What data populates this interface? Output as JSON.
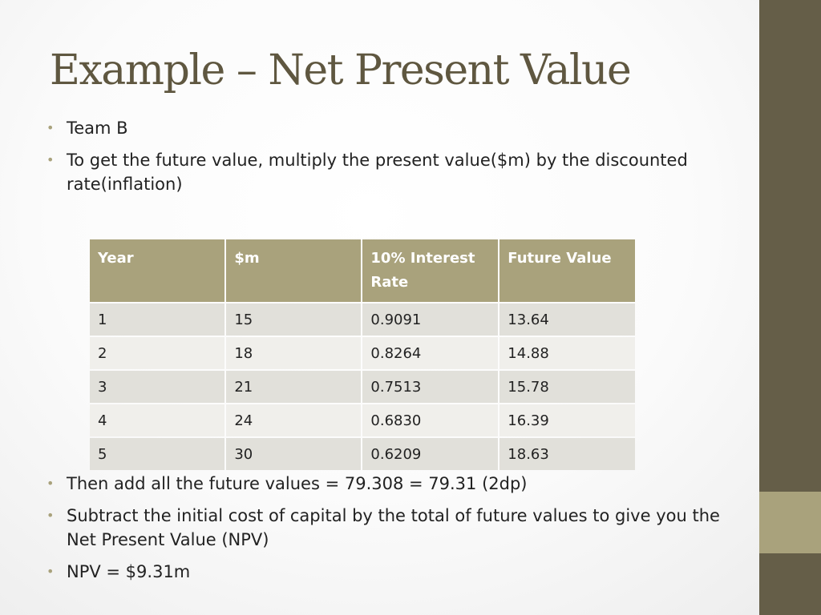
{
  "colors": {
    "title": "#5f5740",
    "accent": "#a9a27c",
    "sidebar": "#655e48"
  },
  "title": "Example – Net Present Value",
  "bullets_top": [
    "Team B",
    "To get the future value, multiply the present value($m) by the discounted rate(inflation)"
  ],
  "table": {
    "headers": [
      "Year",
      "$m",
      "10% Interest Rate",
      "Future Value"
    ],
    "rows": [
      [
        "1",
        "15",
        "0.9091",
        "13.64"
      ],
      [
        "2",
        "18",
        "0.8264",
        "14.88"
      ],
      [
        "3",
        "21",
        "0.7513",
        "15.78"
      ],
      [
        "4",
        "24",
        "0.6830",
        "16.39"
      ],
      [
        "5",
        "30",
        "0.6209",
        "18.63"
      ]
    ]
  },
  "bullets_bottom": [
    "Then add all the future values = 79.308 = 79.31 (2dp)",
    "Subtract the initial cost of capital by the total of future values to give you the Net Present Value (NPV)",
    "NPV = $9.31m"
  ]
}
